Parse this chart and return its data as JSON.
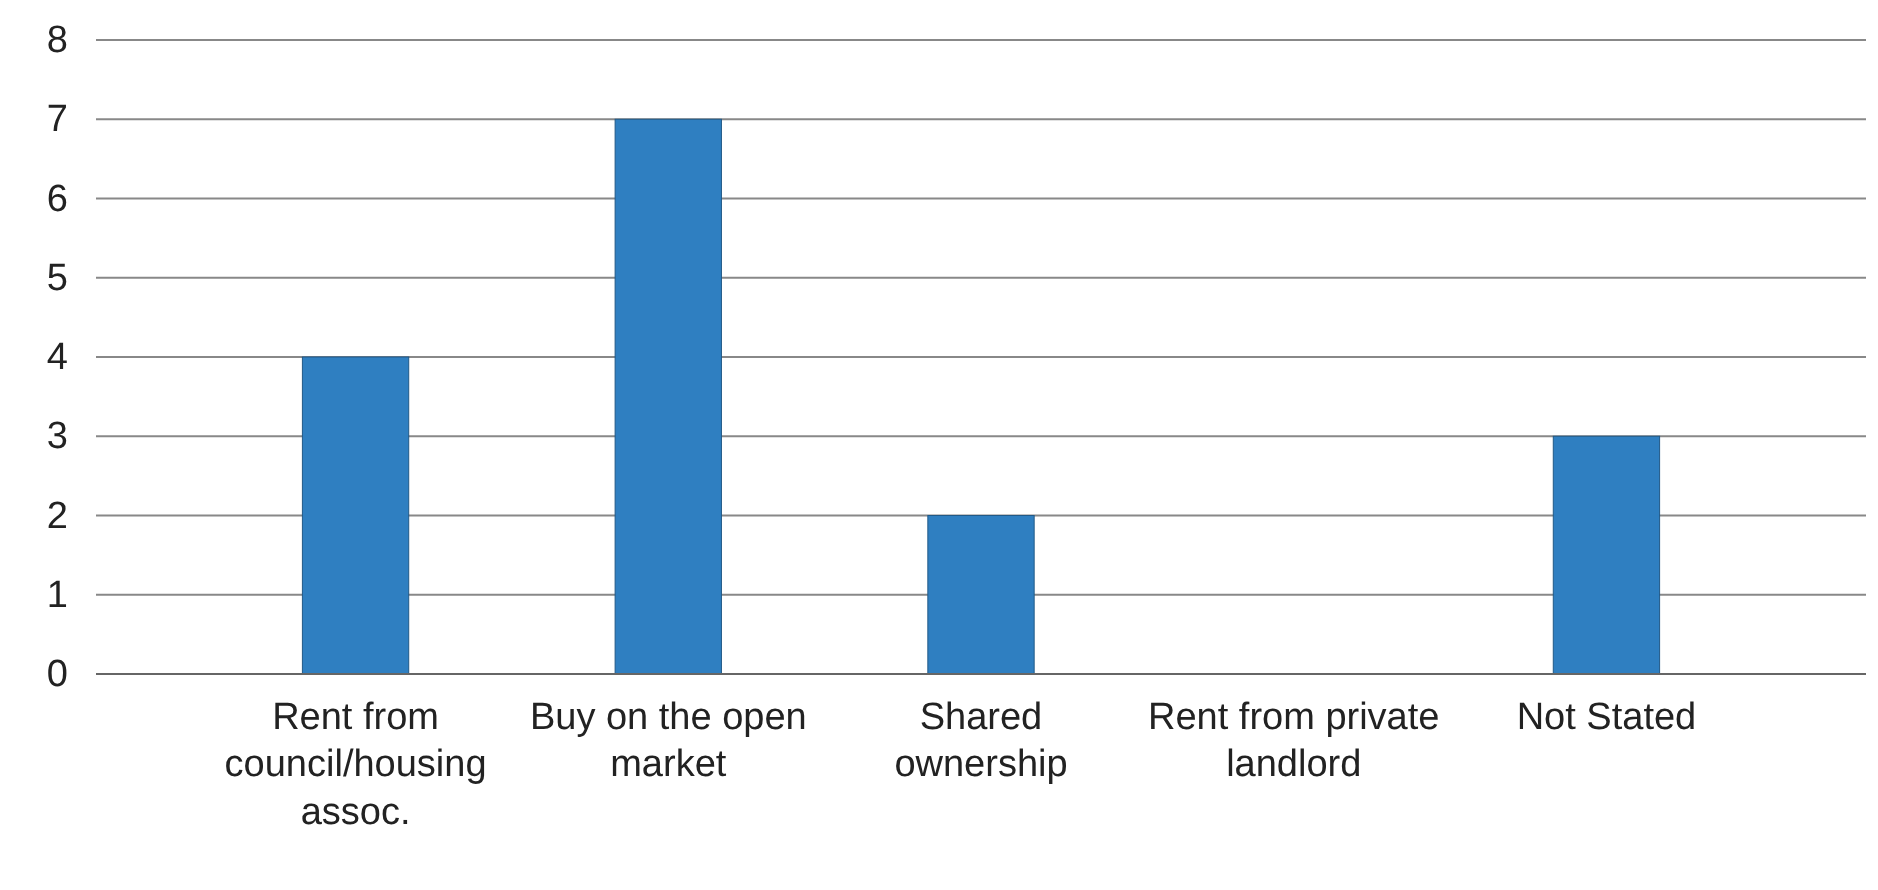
{
  "chart_data": {
    "type": "bar",
    "categories": [
      "Rent from council/housing assoc.",
      "Buy on the open market",
      "Shared ownership",
      "Rent from private landlord",
      "Not Stated"
    ],
    "values": [
      4,
      7,
      2,
      0,
      3
    ],
    "color": "#2f7fc1",
    "ylim": [
      0,
      8
    ],
    "yticks": [
      0,
      1,
      2,
      3,
      4,
      5,
      6,
      7,
      8
    ],
    "grid": "y"
  }
}
